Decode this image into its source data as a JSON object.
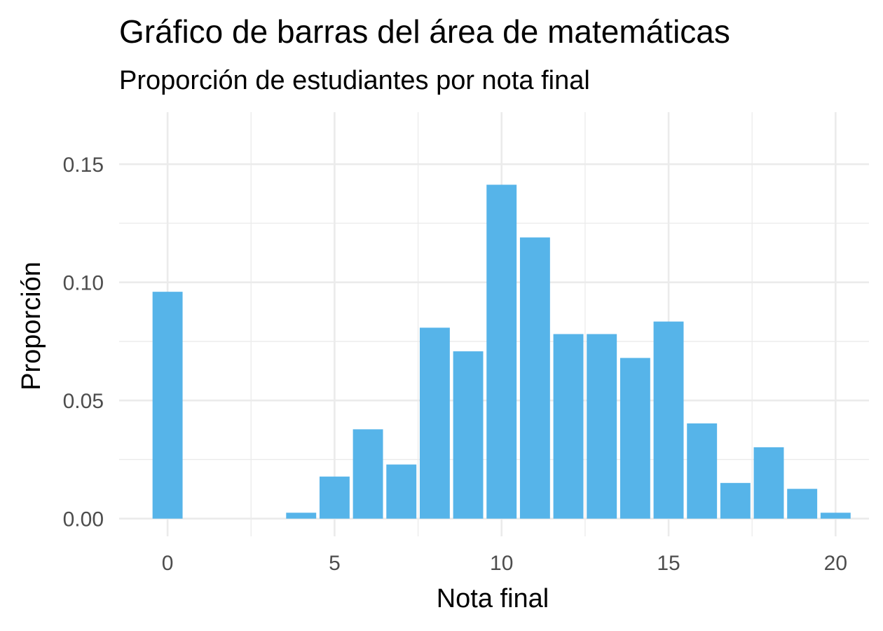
{
  "chart_data": {
    "type": "bar",
    "title": "Gráfico de barras del área de matemáticas",
    "subtitle": "Proporción de estudiantes por nota final",
    "xlabel": "Nota final",
    "ylabel": "Proporción",
    "x": [
      0,
      4,
      5,
      6,
      7,
      8,
      9,
      10,
      11,
      12,
      13,
      14,
      15,
      16,
      17,
      18,
      19,
      20
    ],
    "values": [
      0.096,
      0.0025,
      0.0178,
      0.0378,
      0.0229,
      0.0808,
      0.0708,
      0.1413,
      0.119,
      0.0781,
      0.0781,
      0.068,
      0.0834,
      0.0403,
      0.0151,
      0.0302,
      0.0126,
      0.0025
    ],
    "xticks": [
      "0",
      "5",
      "10",
      "15",
      "20"
    ],
    "yticks": [
      "0.00",
      "0.05",
      "0.10",
      "0.15"
    ],
    "xlim": [
      -1.45,
      21.0
    ],
    "ylim": [
      -0.0075,
      0.172
    ],
    "grid": true,
    "bar_color": "#56B4E9"
  }
}
